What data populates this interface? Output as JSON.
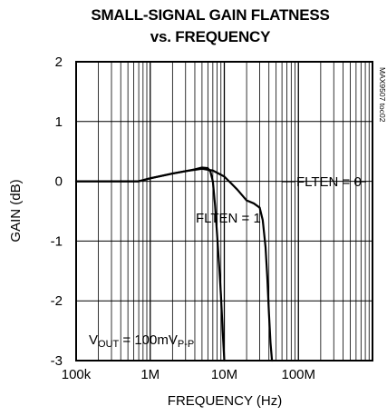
{
  "chart_data": {
    "type": "line",
    "title": "SMALL-SIGNAL GAIN FLATNESS",
    "subtitle": "vs. FREQUENCY",
    "xlabel": "FREQUENCY (Hz)",
    "ylabel": "GAIN (dB)",
    "xscale": "log",
    "xlim": [
      100000,
      1000000000
    ],
    "ylim": [
      -3,
      2
    ],
    "x_ticks": [
      {
        "value": 100000,
        "label": "100k"
      },
      {
        "value": 1000000,
        "label": "1M"
      },
      {
        "value": 10000000,
        "label": "10M"
      },
      {
        "value": 100000000,
        "label": "100M"
      }
    ],
    "y_ticks": [
      {
        "value": 2,
        "label": "2"
      },
      {
        "value": 1,
        "label": "1"
      },
      {
        "value": 0,
        "label": "0"
      },
      {
        "value": -1,
        "label": "-1"
      },
      {
        "value": -2,
        "label": "-2"
      },
      {
        "value": -3,
        "label": "-3"
      }
    ],
    "grid": true,
    "annotation_code": "MAX9507 toc02",
    "condition": {
      "prefix": "V",
      "sub1": "OUT",
      "mid": " = 100mV",
      "sub2": "P-P"
    },
    "series": [
      {
        "name": "FLTEN = 0",
        "x": [
          100000,
          200000,
          300000,
          500000,
          700000,
          1000000,
          2000000,
          3000000,
          5000000,
          7000000,
          10000000,
          15000000,
          20000000,
          25000000,
          30000000,
          33000000,
          36000000,
          38000000,
          40000000,
          42000000,
          44000000
        ],
        "y": [
          0.0,
          0.0,
          0.0,
          0.0,
          0.0,
          0.05,
          0.13,
          0.17,
          0.21,
          0.18,
          0.08,
          -0.14,
          -0.32,
          -0.37,
          -0.44,
          -0.65,
          -1.1,
          -1.6,
          -2.2,
          -2.7,
          -3.0
        ]
      },
      {
        "name": "FLTEN = 1",
        "x": [
          100000,
          200000,
          300000,
          500000,
          700000,
          1000000,
          2000000,
          3000000,
          4000000,
          5000000,
          6000000,
          6500000,
          7000000,
          7500000,
          8000000,
          8500000,
          9000000,
          9500000,
          10000000
        ],
        "y": [
          0.0,
          0.0,
          0.0,
          0.0,
          0.0,
          0.05,
          0.13,
          0.17,
          0.2,
          0.23,
          0.22,
          0.16,
          0.0,
          -0.4,
          -0.9,
          -1.4,
          -1.9,
          -2.5,
          -3.0
        ]
      }
    ],
    "series_labels": [
      {
        "text": "FLTEN = 0",
        "series": 0
      },
      {
        "text": "FLTEN = 1",
        "series": 1
      }
    ]
  }
}
